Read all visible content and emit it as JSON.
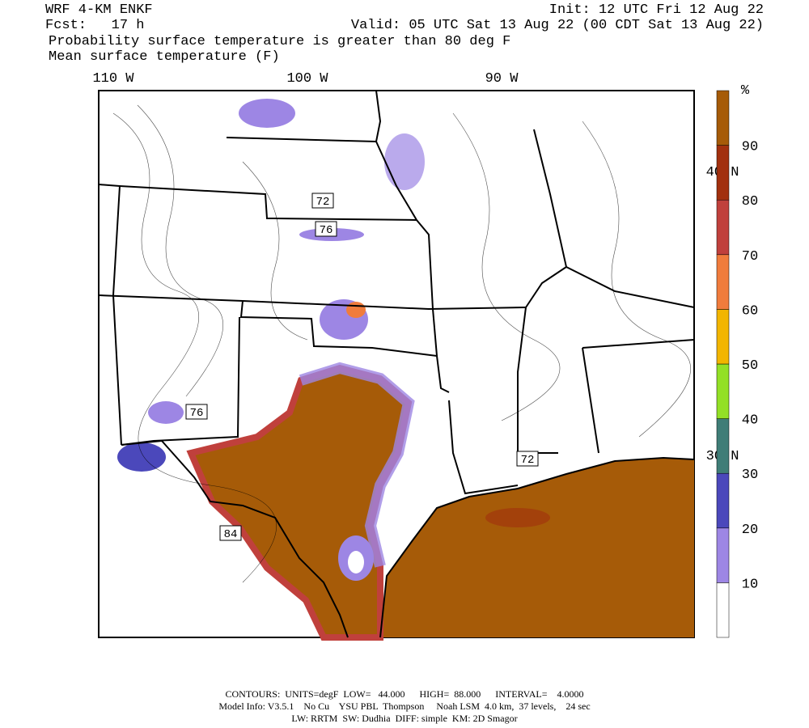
{
  "header": {
    "model": "WRF 4-KM ENKF",
    "init": "Init: 12 UTC Fri 12 Aug 22",
    "fcst": "Fcst:   17 h",
    "valid": "Valid: 05 UTC Sat 13 Aug 22 (00 CDT Sat 13 Aug 22)",
    "line1": "Probability surface temperature is greater than 80 deg F",
    "line2": "Mean surface temperature (F)"
  },
  "map": {
    "lon_labels": [
      "110 W",
      "100 W",
      "90 W"
    ],
    "lat_labels": [
      "40 N",
      "30 N"
    ],
    "contour_labels": [
      "72",
      "76",
      "76",
      "72",
      "84"
    ]
  },
  "colorbar": {
    "unit": "%",
    "labels": [
      "10",
      "20",
      "30",
      "40",
      "50",
      "60",
      "70",
      "80",
      "90"
    ],
    "colors": [
      "#ffffff",
      "#9d86e4",
      "#4b48bb",
      "#3f7d77",
      "#93e026",
      "#f2b500",
      "#f07c3c",
      "#c0403c",
      "#a2300e",
      "#a65b08"
    ]
  },
  "footer": {
    "line1": "CONTOURS:  UNITS=degF  LOW=   44.000      HIGH=  88.000      INTERVAL=    4.0000",
    "line2": "Model Info: V3.5.1    No Cu    YSU PBL  Thompson     Noah LSM  4.0 km,  37 levels,    24 sec",
    "line3": "LW: RRTM  SW: Dudhia  DIFF: simple  KM: 2D Smagor"
  }
}
